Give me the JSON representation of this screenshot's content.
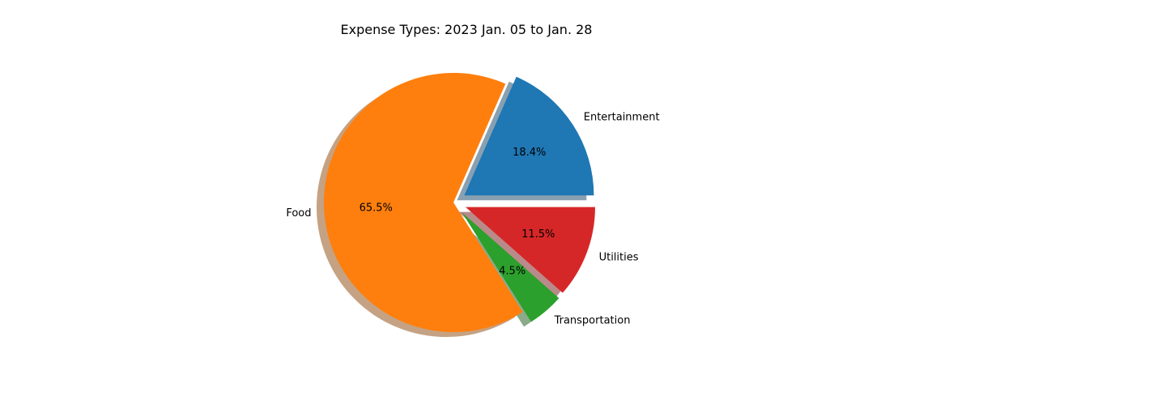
{
  "chart_data": {
    "type": "pie",
    "title": "Expense Types: 2023 Jan. 05 to  Jan. 28",
    "categories": [
      "Entertainment",
      "Food",
      "Transportation",
      "Utilities"
    ],
    "values": [
      18.4,
      65.5,
      4.5,
      11.5
    ],
    "value_labels": [
      "18.4%",
      "65.5%",
      "4.5%",
      "11.5%"
    ],
    "colors": [
      "#1f77b4",
      "#ff7f0e",
      "#2ca02c",
      "#d62728"
    ],
    "explode": [
      0.1,
      0.0,
      0.1,
      0.1
    ],
    "start_angle_deg": 0,
    "shadow": true,
    "legend": "none"
  }
}
